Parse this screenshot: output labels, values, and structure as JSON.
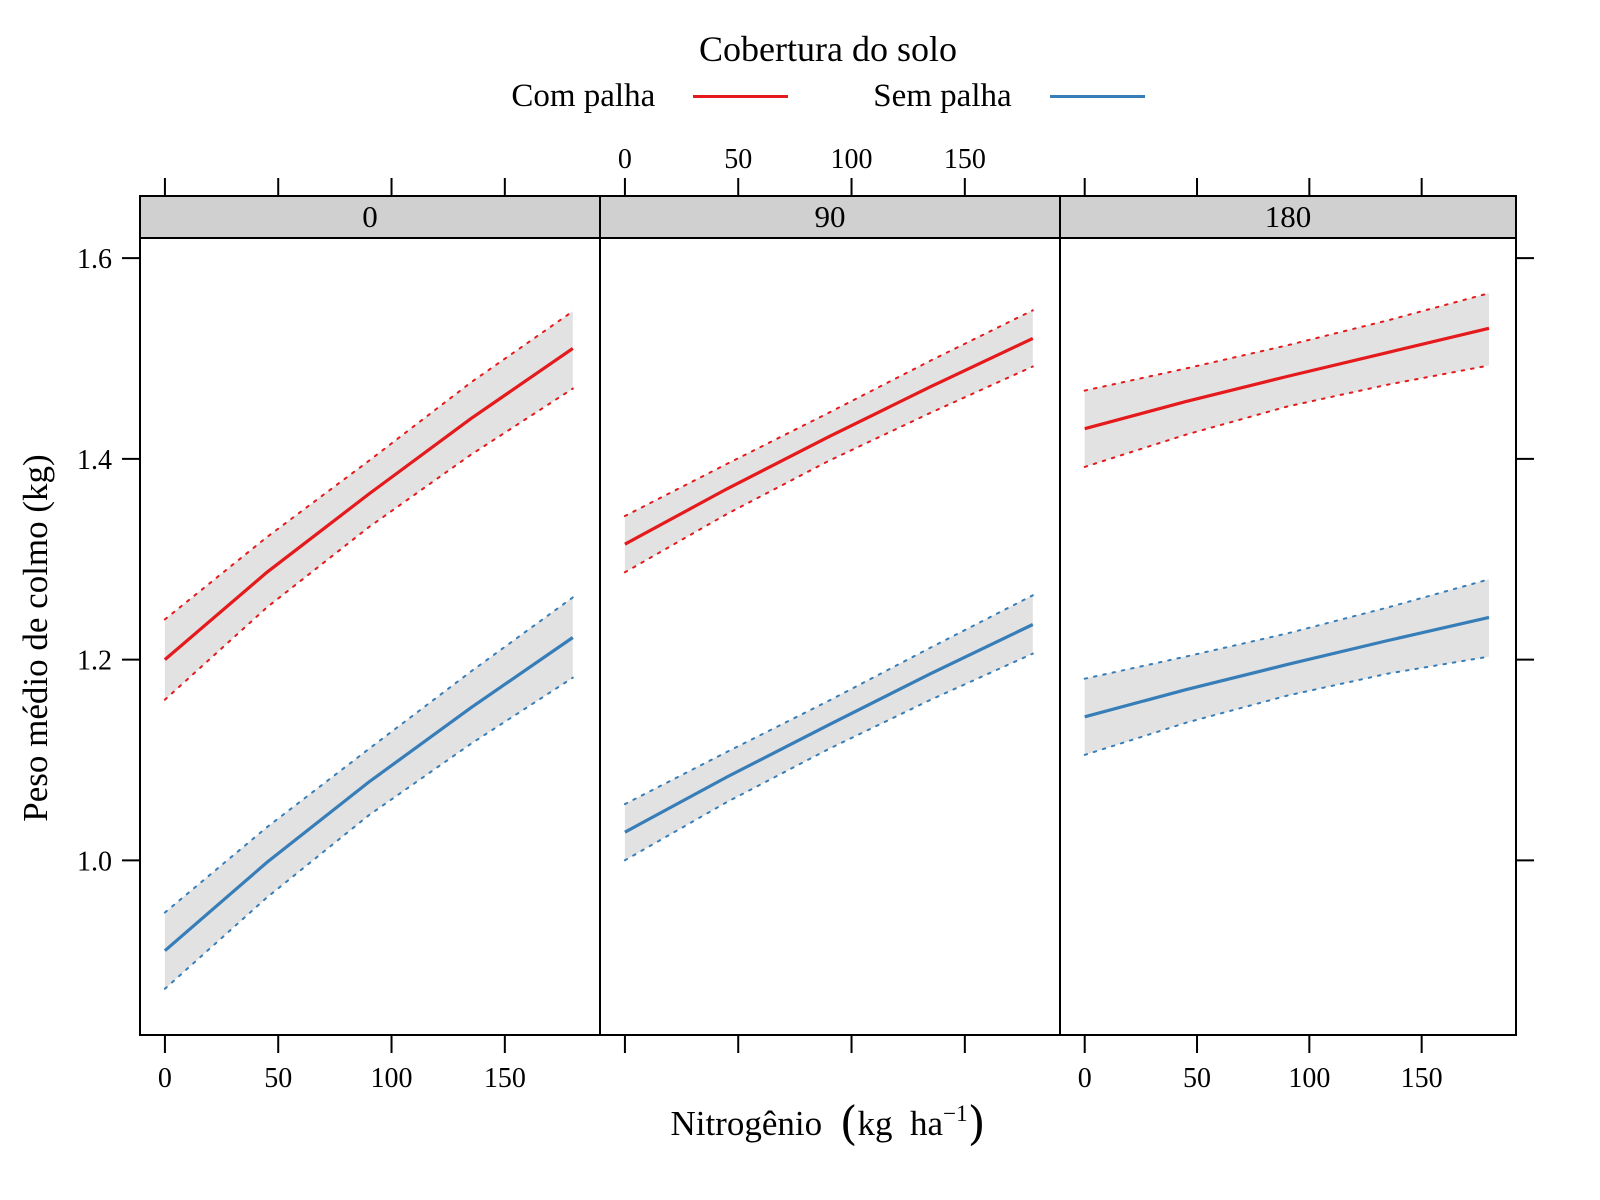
{
  "legend": {
    "title": "Cobertura do solo",
    "items": [
      {
        "label": "Com palha",
        "color": "#E41A1C"
      },
      {
        "label": "Sem palha",
        "color": "#377EB8"
      }
    ]
  },
  "axes": {
    "x": {
      "title": "Nitrogênio",
      "unit_open": "(",
      "unit": "kg  ha",
      "exponent": "−1",
      "unit_close": ")",
      "tick_values": [
        0,
        50,
        100,
        150
      ],
      "tick_labels": [
        "0",
        "50",
        "100",
        "150"
      ]
    },
    "y": {
      "title": "Peso médio de colmo (kg)",
      "tick_values": [
        1.0,
        1.2,
        1.4,
        1.6
      ],
      "tick_labels": [
        "1.0",
        "1.2",
        "1.4",
        "1.6"
      ]
    }
  },
  "chart_data": {
    "type": "line",
    "facet_strip_labels": [
      "0",
      "90",
      "180"
    ],
    "x": [
      0,
      45,
      90,
      135,
      180
    ],
    "xlim": [
      -11,
      192
    ],
    "ylim": [
      0.826,
      1.62
    ],
    "xlabel": "Nitrogênio (kg ha−1)",
    "ylabel": "Peso médio de colmo (kg)",
    "legend_title": "Cobertura do solo",
    "band_fill": "#E2E2E2",
    "strip_fill": "#D0D0D0",
    "panels": [
      {
        "label": "0",
        "series": [
          {
            "name": "Com palha",
            "color": "#E41A1C",
            "mean": [
              1.2,
              1.287,
              1.365,
              1.44,
              1.51
            ],
            "lower": [
              1.16,
              1.252,
              1.332,
              1.404,
              1.47
            ],
            "upper": [
              1.24,
              1.322,
              1.398,
              1.476,
              1.547
            ]
          },
          {
            "name": "Sem palha",
            "color": "#377EB8",
            "mean": [
              0.91,
              0.998,
              1.078,
              1.152,
              1.222
            ],
            "lower": [
              0.872,
              0.963,
              1.045,
              1.116,
              1.182
            ],
            "upper": [
              0.948,
              1.033,
              1.111,
              1.188,
              1.262
            ]
          }
        ]
      },
      {
        "label": "90",
        "series": [
          {
            "name": "Com palha",
            "color": "#E41A1C",
            "mean": [
              1.315,
              1.37,
              1.422,
              1.472,
              1.52
            ],
            "lower": [
              1.287,
              1.345,
              1.398,
              1.446,
              1.492
            ],
            "upper": [
              1.343,
              1.395,
              1.446,
              1.498,
              1.548
            ]
          },
          {
            "name": "Sem palha",
            "color": "#377EB8",
            "mean": [
              1.028,
              1.083,
              1.135,
              1.186,
              1.235
            ],
            "lower": [
              1.0,
              1.058,
              1.111,
              1.16,
              1.206
            ],
            "upper": [
              1.056,
              1.108,
              1.159,
              1.212,
              1.264
            ]
          }
        ]
      },
      {
        "label": "180",
        "series": [
          {
            "name": "Com palha",
            "color": "#E41A1C",
            "mean": [
              1.43,
              1.457,
              1.482,
              1.506,
              1.53
            ],
            "lower": [
              1.392,
              1.424,
              1.452,
              1.474,
              1.493
            ],
            "upper": [
              1.468,
              1.49,
              1.513,
              1.538,
              1.565
            ]
          },
          {
            "name": "Sem palha",
            "color": "#377EB8",
            "mean": [
              1.143,
              1.17,
              1.195,
              1.219,
              1.242
            ],
            "lower": [
              1.105,
              1.137,
              1.164,
              1.186,
              1.203
            ],
            "upper": [
              1.181,
              1.203,
              1.226,
              1.252,
              1.28
            ]
          }
        ]
      }
    ]
  }
}
